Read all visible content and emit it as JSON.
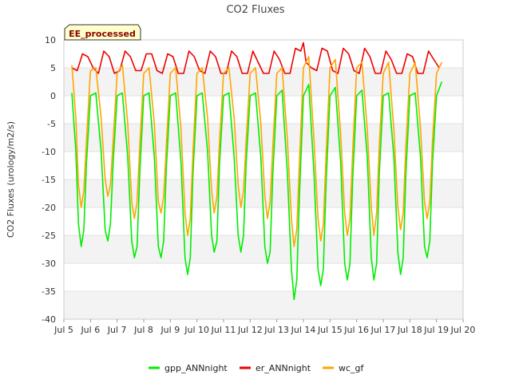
{
  "chart_data": {
    "type": "line",
    "title": "CO2 Fluxes",
    "xlabel": "",
    "ylabel": "CO2 Fluxes (urology/m2/s)",
    "badge": "EE_processed",
    "xlim": [
      5,
      20
    ],
    "ylim": [
      -40,
      10
    ],
    "x_ticks": [
      {
        "value": 5,
        "label": "Jul 5"
      },
      {
        "value": 6,
        "label": "Jul 6"
      },
      {
        "value": 7,
        "label": "Jul 7"
      },
      {
        "value": 8,
        "label": "Jul 8"
      },
      {
        "value": 9,
        "label": "Jul 9"
      },
      {
        "value": 10,
        "label": "Jul 10"
      },
      {
        "value": 11,
        "label": "Jul 11"
      },
      {
        "value": 12,
        "label": "Jul 12"
      },
      {
        "value": 13,
        "label": "Jul 13"
      },
      {
        "value": 14,
        "label": "Jul 14"
      },
      {
        "value": 15,
        "label": "Jul 15"
      },
      {
        "value": 16,
        "label": "Jul 16"
      },
      {
        "value": 17,
        "label": "Jul 17"
      },
      {
        "value": 18,
        "label": "Jul 18"
      },
      {
        "value": 19,
        "label": "Jul 19"
      },
      {
        "value": 20,
        "label": "Jul 20"
      }
    ],
    "y_ticks": [
      {
        "value": 10,
        "label": "10"
      },
      {
        "value": 5,
        "label": "5"
      },
      {
        "value": 0,
        "label": "0"
      },
      {
        "value": -5,
        "label": "-5"
      },
      {
        "value": -10,
        "label": "-10"
      },
      {
        "value": -15,
        "label": "-15"
      },
      {
        "value": -20,
        "label": "-20"
      },
      {
        "value": -25,
        "label": "-25"
      },
      {
        "value": -30,
        "label": "-30"
      },
      {
        "value": -35,
        "label": "-35"
      },
      {
        "value": -40,
        "label": "-40"
      }
    ],
    "series": [
      {
        "name": "gpp_ANNnight",
        "color": "#00ee00",
        "x": [
          5.3,
          5.45,
          5.55,
          5.65,
          5.75,
          5.85,
          6.0,
          6.2,
          6.4,
          6.55,
          6.65,
          6.75,
          6.85,
          7.0,
          7.2,
          7.4,
          7.55,
          7.65,
          7.75,
          7.85,
          8.0,
          8.2,
          8.4,
          8.55,
          8.65,
          8.75,
          8.85,
          9.0,
          9.2,
          9.4,
          9.55,
          9.65,
          9.75,
          9.85,
          10.0,
          10.2,
          10.4,
          10.55,
          10.65,
          10.75,
          10.85,
          11.0,
          11.2,
          11.4,
          11.55,
          11.65,
          11.75,
          11.85,
          12.0,
          12.2,
          12.4,
          12.55,
          12.65,
          12.75,
          12.85,
          13.0,
          13.2,
          13.4,
          13.55,
          13.65,
          13.75,
          13.85,
          14.0,
          14.2,
          14.4,
          14.55,
          14.65,
          14.75,
          14.85,
          15.0,
          15.2,
          15.4,
          15.55,
          15.65,
          15.75,
          15.85,
          16.0,
          16.2,
          16.4,
          16.55,
          16.65,
          16.75,
          16.85,
          17.0,
          17.2,
          17.4,
          17.55,
          17.65,
          17.75,
          17.85,
          18.0,
          18.2,
          18.4,
          18.55,
          18.65,
          18.75,
          18.85,
          19.0,
          19.2
        ],
        "values": [
          0.5,
          -10,
          -23,
          -27,
          -24,
          -12,
          0,
          0.5,
          -10,
          -24,
          -26,
          -23,
          -12,
          0,
          0.5,
          -11,
          -26,
          -29,
          -27,
          -14,
          0,
          0.5,
          -11,
          -27,
          -29,
          -26,
          -13,
          0,
          0.5,
          -12,
          -29,
          -32,
          -29,
          -14,
          0,
          0.5,
          -10,
          -25,
          -28,
          -26,
          -12,
          0,
          0.5,
          -11,
          -25,
          -28,
          -25,
          -12,
          0,
          0.5,
          -11,
          -27,
          -30,
          -28,
          -14,
          0,
          1,
          -14,
          -31,
          -36.5,
          -33,
          -18,
          0,
          2,
          -14,
          -31,
          -34,
          -31,
          -16,
          0,
          1.5,
          -12,
          -30,
          -33,
          -30,
          -15,
          0,
          1,
          -11,
          -29,
          -33,
          -30,
          -14,
          0,
          0.5,
          -11,
          -28,
          -32,
          -29,
          -14,
          0,
          0.5,
          -11,
          -27,
          -29,
          -26,
          -12,
          0,
          2.5
        ]
      },
      {
        "name": "er_ANNnight",
        "color": "#ee0000",
        "x": [
          5.3,
          5.5,
          5.7,
          5.9,
          6.1,
          6.3,
          6.5,
          6.7,
          6.9,
          7.1,
          7.3,
          7.5,
          7.7,
          7.9,
          8.1,
          8.3,
          8.5,
          8.7,
          8.9,
          9.1,
          9.3,
          9.5,
          9.7,
          9.9,
          10.1,
          10.3,
          10.5,
          10.7,
          10.9,
          11.1,
          11.3,
          11.5,
          11.7,
          11.9,
          12.1,
          12.3,
          12.5,
          12.7,
          12.9,
          13.1,
          13.3,
          13.5,
          13.7,
          13.9,
          14.0,
          14.1,
          14.3,
          14.5,
          14.7,
          14.9,
          15.1,
          15.3,
          15.5,
          15.7,
          15.9,
          16.1,
          16.3,
          16.5,
          16.7,
          16.9,
          17.1,
          17.3,
          17.5,
          17.7,
          17.9,
          18.1,
          18.3,
          18.5,
          18.7,
          18.9,
          19.1
        ],
        "values": [
          5,
          4.5,
          7.5,
          7,
          5,
          4,
          8,
          7,
          4,
          4.5,
          8,
          7,
          4.5,
          4.5,
          7.5,
          7.5,
          4.5,
          4,
          7.5,
          7,
          4,
          4,
          8,
          7,
          4.5,
          4,
          8,
          7,
          4,
          4,
          8,
          7,
          4,
          4,
          8,
          6,
          4,
          4,
          8,
          6.5,
          4,
          4,
          8.5,
          8,
          9.5,
          6,
          5,
          4.5,
          8.5,
          8,
          4.5,
          4,
          8.5,
          7.5,
          4.5,
          4,
          8.5,
          7,
          4,
          4,
          8,
          6.5,
          4,
          4,
          7.5,
          7,
          4,
          4,
          8,
          6.5,
          5
        ]
      },
      {
        "name": "wc_gf",
        "color": "#ffa500",
        "x": [
          5.3,
          5.45,
          5.55,
          5.65,
          5.75,
          5.85,
          6.0,
          6.2,
          6.4,
          6.55,
          6.65,
          6.75,
          6.85,
          7.0,
          7.2,
          7.4,
          7.55,
          7.65,
          7.75,
          7.85,
          8.0,
          8.2,
          8.4,
          8.55,
          8.65,
          8.75,
          8.85,
          9.0,
          9.2,
          9.4,
          9.55,
          9.65,
          9.75,
          9.85,
          10.0,
          10.2,
          10.4,
          10.55,
          10.65,
          10.75,
          10.85,
          11.0,
          11.2,
          11.4,
          11.55,
          11.65,
          11.75,
          11.85,
          12.0,
          12.2,
          12.4,
          12.55,
          12.65,
          12.75,
          12.85,
          13.0,
          13.2,
          13.4,
          13.55,
          13.65,
          13.75,
          13.85,
          14.0,
          14.2,
          14.4,
          14.55,
          14.65,
          14.75,
          14.85,
          15.0,
          15.2,
          15.4,
          15.55,
          15.65,
          15.75,
          15.85,
          16.0,
          16.2,
          16.4,
          16.55,
          16.65,
          16.75,
          16.85,
          17.0,
          17.2,
          17.4,
          17.55,
          17.65,
          17.75,
          17.85,
          18.0,
          18.2,
          18.4,
          18.55,
          18.65,
          18.75,
          18.85,
          19.0,
          19.2
        ],
        "values": [
          5.5,
          -4,
          -16,
          -20,
          -17,
          -8,
          4.5,
          5,
          -4,
          -15,
          -18,
          -16,
          -8,
          4,
          5.5,
          -5,
          -19,
          -22,
          -19,
          -9,
          4,
          5,
          -5,
          -19,
          -21,
          -18,
          -9,
          4,
          5,
          -6,
          -21,
          -25,
          -22,
          -10,
          4,
          5,
          -4,
          -17,
          -21,
          -18,
          -8,
          4,
          5,
          -4,
          -16,
          -20,
          -17,
          -8,
          4,
          5,
          -5,
          -18,
          -22,
          -19,
          -9,
          4,
          5,
          -8,
          -22,
          -27,
          -24,
          -12,
          5,
          7,
          -8,
          -22,
          -26,
          -23,
          -11,
          5,
          6.5,
          -7,
          -21,
          -25,
          -22,
          -10,
          5,
          6,
          -6,
          -20,
          -25,
          -21,
          -9,
          4,
          6,
          -6,
          -20,
          -24,
          -21,
          -9,
          4,
          6,
          -6,
          -19,
          -22,
          -19,
          -8,
          4,
          6
        ]
      }
    ],
    "legend": [
      "gpp_ANNnight",
      "er_ANNnight",
      "wc_gf"
    ],
    "legend_position": "bottom-center",
    "grid": true
  }
}
